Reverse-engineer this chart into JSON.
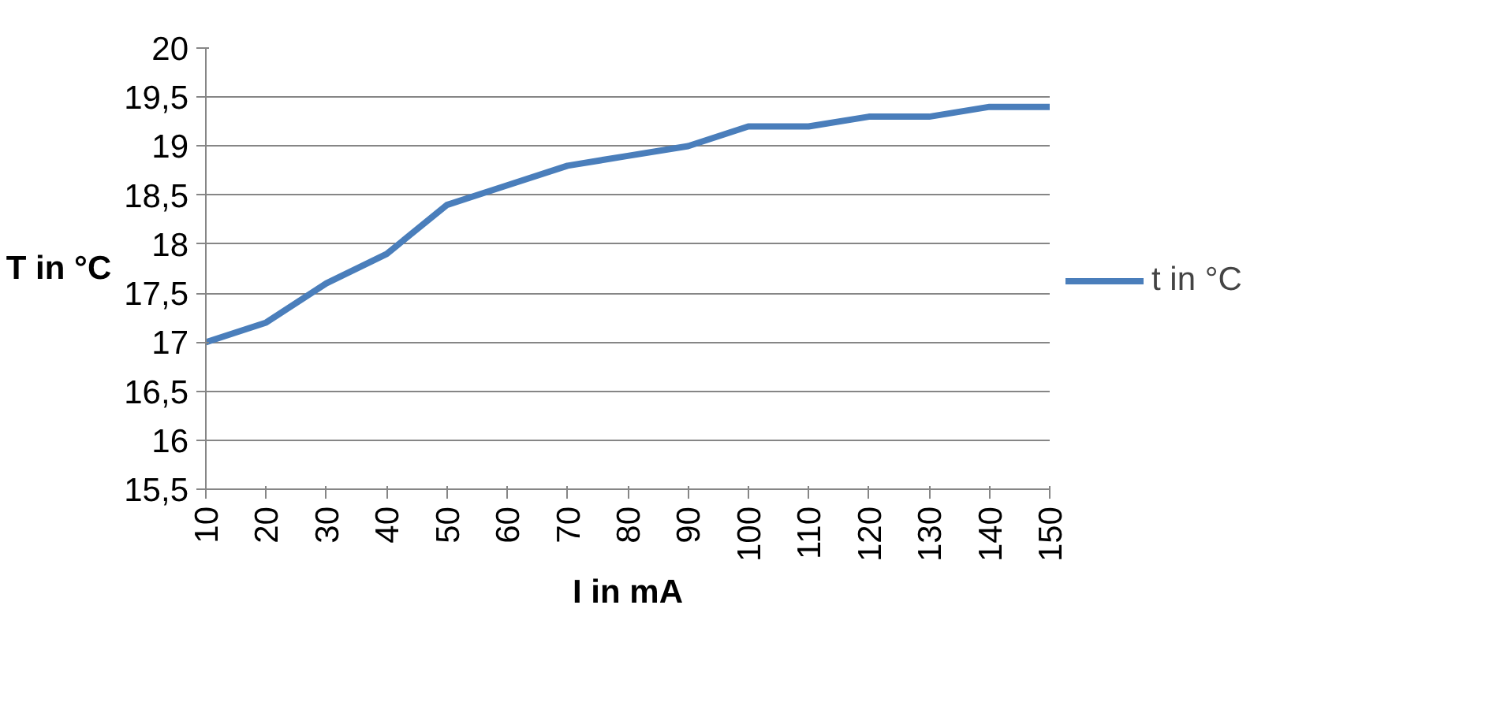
{
  "chart_data": {
    "type": "line",
    "xlabel": "I in mA",
    "ylabel": "T in °C",
    "categories": [
      "10",
      "20",
      "30",
      "40",
      "50",
      "60",
      "70",
      "80",
      "90",
      "100",
      "110",
      "120",
      "130",
      "140",
      "150"
    ],
    "series": [
      {
        "name": "t in °C",
        "color": "#4a7ebb",
        "values": [
          17.0,
          17.2,
          17.6,
          17.9,
          18.4,
          18.6,
          18.8,
          18.9,
          19.0,
          19.2,
          19.2,
          19.3,
          19.3,
          19.4,
          19.4
        ]
      }
    ],
    "ylim": [
      15.5,
      20
    ],
    "yticks": [
      {
        "value": 15.5,
        "label": "15,5"
      },
      16,
      {
        "value": 16.5,
        "label": "16,5"
      },
      17,
      {
        "value": 17.5,
        "label": "17,5"
      },
      18,
      {
        "value": 18.5,
        "label": "18,5"
      },
      19,
      {
        "value": 19.5,
        "label": "19,5"
      },
      20
    ],
    "grid": "y",
    "legend": "right",
    "marker": "none",
    "line_style": "solid"
  }
}
